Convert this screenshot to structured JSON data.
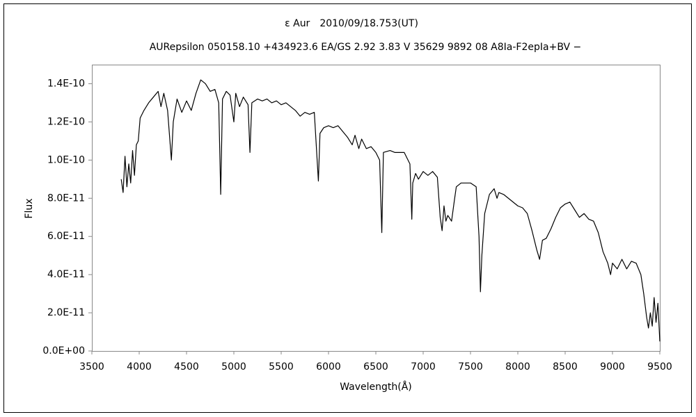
{
  "chart_data": {
    "type": "line",
    "title": "ε Aur　2010/09/18.753(UT)",
    "subtitle": "AURepsilon 050158.10 +434923.6 EA/GS 2.92 3.83 V 35629 9892 08 A8Ia-F2epIa+BV −",
    "x_label": "Wavelength(Å)",
    "y_label": "Flux",
    "xlim": [
      3500,
      9500
    ],
    "xticks": [
      3500,
      4000,
      4500,
      5000,
      5500,
      6000,
      6500,
      7000,
      7500,
      8000,
      8500,
      9000,
      9500
    ],
    "ylim": [
      0,
      1.5e-10
    ],
    "yticks": [
      {
        "value": 0,
        "label": "0.0E+00"
      },
      {
        "value": 2e-11,
        "label": "2.0E-11"
      },
      {
        "value": 4e-11,
        "label": "4.0E-11"
      },
      {
        "value": 6e-11,
        "label": "6.0E-11"
      },
      {
        "value": 8e-11,
        "label": "8.0E-11"
      },
      {
        "value": 1e-10,
        "label": "1.0E-10"
      },
      {
        "value": 1.2e-10,
        "label": "1.2E-10"
      },
      {
        "value": 1.4e-10,
        "label": "1.4E-10"
      }
    ],
    "grid": false,
    "color": "#000000",
    "x": [
      3810,
      3830,
      3850,
      3870,
      3890,
      3910,
      3930,
      3950,
      3970,
      3990,
      4010,
      4050,
      4100,
      4150,
      4200,
      4230,
      4260,
      4300,
      4340,
      4360,
      4400,
      4450,
      4500,
      4550,
      4600,
      4650,
      4700,
      4750,
      4800,
      4840,
      4861,
      4880,
      4920,
      4960,
      5000,
      5020,
      5060,
      5100,
      5150,
      5170,
      5190,
      5250,
      5300,
      5350,
      5400,
      5450,
      5500,
      5550,
      5600,
      5650,
      5700,
      5750,
      5800,
      5850,
      5893,
      5910,
      5950,
      6000,
      6050,
      6100,
      6150,
      6200,
      6250,
      6280,
      6320,
      6350,
      6400,
      6450,
      6500,
      6540,
      6563,
      6580,
      6650,
      6700,
      6800,
      6860,
      6880,
      6890,
      6920,
      6950,
      7000,
      7050,
      7100,
      7150,
      7180,
      7200,
      7220,
      7240,
      7260,
      7300,
      7330,
      7350,
      7400,
      7450,
      7500,
      7560,
      7590,
      7605,
      7620,
      7650,
      7700,
      7750,
      7780,
      7800,
      7850,
      7900,
      7950,
      8000,
      8050,
      8100,
      8150,
      8200,
      8230,
      8260,
      8300,
      8350,
      8400,
      8450,
      8500,
      8550,
      8600,
      8650,
      8700,
      8750,
      8800,
      8850,
      8900,
      8950,
      8980,
      9000,
      9050,
      9100,
      9150,
      9200,
      9250,
      9300,
      9330,
      9360,
      9380,
      9400,
      9420,
      9440,
      9460,
      9480,
      9500
    ],
    "values": [
      9e-11,
      8.3e-11,
      1.02e-10,
      8.6e-11,
      9.8e-11,
      8.8e-11,
      1.05e-10,
      9.2e-11,
      1.08e-10,
      1.1e-10,
      1.22e-10,
      1.26e-10,
      1.3e-10,
      1.33e-10,
      1.36e-10,
      1.28e-10,
      1.35e-10,
      1.26e-10,
      1e-10,
      1.2e-10,
      1.32e-10,
      1.25e-10,
      1.31e-10,
      1.26e-10,
      1.35e-10,
      1.42e-10,
      1.4e-10,
      1.36e-10,
      1.37e-10,
      1.3e-10,
      8.2e-11,
      1.32e-10,
      1.36e-10,
      1.34e-10,
      1.2e-10,
      1.35e-10,
      1.28e-10,
      1.33e-10,
      1.29e-10,
      1.04e-10,
      1.3e-10,
      1.32e-10,
      1.31e-10,
      1.32e-10,
      1.3e-10,
      1.31e-10,
      1.29e-10,
      1.3e-10,
      1.28e-10,
      1.26e-10,
      1.23e-10,
      1.25e-10,
      1.24e-10,
      1.25e-10,
      8.9e-11,
      1.14e-10,
      1.17e-10,
      1.18e-10,
      1.17e-10,
      1.18e-10,
      1.15e-10,
      1.12e-10,
      1.08e-10,
      1.13e-10,
      1.06e-10,
      1.11e-10,
      1.06e-10,
      1.07e-10,
      1.04e-10,
      1e-10,
      6.2e-11,
      1.04e-10,
      1.05e-10,
      1.04e-10,
      1.04e-10,
      9.8e-11,
      6.9e-11,
      8.8e-11,
      9.3e-11,
      9e-11,
      9.4e-11,
      9.2e-11,
      9.4e-11,
      9.1e-11,
      7e-11,
      6.3e-11,
      7.6e-11,
      6.8e-11,
      7.1e-11,
      6.8e-11,
      7.9e-11,
      8.6e-11,
      8.8e-11,
      8.8e-11,
      8.8e-11,
      8.6e-11,
      6e-11,
      3.1e-11,
      5e-11,
      7.2e-11,
      8.2e-11,
      8.5e-11,
      8e-11,
      8.3e-11,
      8.2e-11,
      8e-11,
      7.8e-11,
      7.6e-11,
      7.5e-11,
      7.2e-11,
      6.3e-11,
      5.3e-11,
      4.8e-11,
      5.8e-11,
      5.9e-11,
      6.4e-11,
      7e-11,
      7.5e-11,
      7.7e-11,
      7.8e-11,
      7.4e-11,
      7e-11,
      7.2e-11,
      6.9e-11,
      6.8e-11,
      6.2e-11,
      5.2e-11,
      4.6e-11,
      4e-11,
      4.6e-11,
      4.3e-11,
      4.8e-11,
      4.3e-11,
      4.7e-11,
      4.6e-11,
      4e-11,
      3e-11,
      1.8e-11,
      1.2e-11,
      2e-11,
      1.3e-11,
      2.8e-11,
      1.5e-11,
      2.5e-11,
      5e-12
    ]
  }
}
